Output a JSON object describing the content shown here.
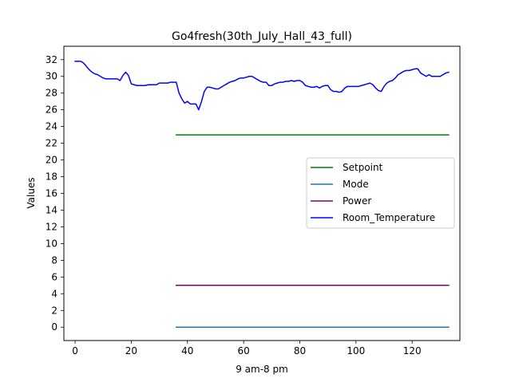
{
  "chart_data": {
    "type": "line",
    "title": "Go4fresh(30th_July_Hall_43_full)",
    "xlabel": "9 am-8 pm",
    "ylabel": "Values",
    "xlim": [
      -4,
      137
    ],
    "ylim": [
      -1.6,
      33.6
    ],
    "xticks": [
      0,
      20,
      40,
      60,
      80,
      100,
      120
    ],
    "yticks": [
      0,
      2,
      4,
      6,
      8,
      10,
      12,
      14,
      16,
      18,
      20,
      22,
      24,
      26,
      28,
      30,
      32
    ],
    "grid": false,
    "legend_position": "center-right",
    "series": [
      {
        "name": "Setpoint",
        "color": "#008000",
        "x": [
          36,
          133
        ],
        "y": [
          23,
          23
        ]
      },
      {
        "name": "Mode",
        "color": "#1f77b4",
        "x": [
          36,
          133
        ],
        "y": [
          0,
          0
        ]
      },
      {
        "name": "Power",
        "color": "#800080",
        "x": [
          36,
          133
        ],
        "y": [
          5,
          5
        ]
      },
      {
        "name": "Room_Temperature",
        "color": "#0000ff",
        "x": [
          0,
          1,
          2,
          3,
          4,
          5,
          6,
          7,
          8,
          9,
          10,
          11,
          12,
          13,
          14,
          15,
          16,
          17,
          18,
          19,
          20,
          21,
          22,
          23,
          24,
          25,
          26,
          27,
          28,
          29,
          30,
          31,
          32,
          33,
          34,
          35,
          36,
          37,
          38,
          39,
          40,
          41,
          42,
          43,
          44,
          45,
          46,
          47,
          48,
          49,
          50,
          51,
          52,
          53,
          54,
          55,
          56,
          57,
          58,
          59,
          60,
          61,
          62,
          63,
          64,
          65,
          66,
          67,
          68,
          69,
          70,
          71,
          72,
          73,
          74,
          75,
          76,
          77,
          78,
          79,
          80,
          81,
          82,
          83,
          84,
          85,
          86,
          87,
          88,
          89,
          90,
          91,
          92,
          93,
          94,
          95,
          96,
          97,
          98,
          99,
          100,
          101,
          102,
          103,
          104,
          105,
          106,
          107,
          108,
          109,
          110,
          111,
          112,
          113,
          114,
          115,
          116,
          117,
          118,
          119,
          120,
          121,
          122,
          123,
          124,
          125,
          126,
          127,
          128,
          129,
          130,
          131,
          132,
          133
        ],
        "y": [
          31.8,
          31.8,
          31.8,
          31.6,
          31.2,
          30.8,
          30.5,
          30.3,
          30.2,
          30.0,
          29.8,
          29.7,
          29.7,
          29.7,
          29.7,
          29.7,
          29.5,
          30.1,
          30.5,
          30.1,
          29.1,
          29.0,
          28.9,
          28.9,
          28.9,
          28.9,
          29.0,
          29.0,
          29.0,
          29.0,
          29.2,
          29.2,
          29.2,
          29.2,
          29.3,
          29.3,
          29.3,
          28.0,
          27.3,
          26.8,
          27.0,
          26.7,
          26.7,
          26.7,
          26.0,
          27.0,
          28.2,
          28.7,
          28.7,
          28.6,
          28.5,
          28.5,
          28.7,
          28.9,
          29.1,
          29.3,
          29.4,
          29.5,
          29.7,
          29.8,
          29.8,
          29.9,
          30.0,
          30.0,
          29.8,
          29.6,
          29.4,
          29.3,
          29.3,
          28.9,
          28.9,
          29.1,
          29.2,
          29.3,
          29.3,
          29.4,
          29.4,
          29.5,
          29.4,
          29.5,
          29.5,
          29.3,
          28.9,
          28.8,
          28.7,
          28.7,
          28.8,
          28.6,
          28.8,
          28.9,
          28.9,
          28.4,
          28.2,
          28.2,
          28.1,
          28.2,
          28.6,
          28.8,
          28.8,
          28.8,
          28.8,
          28.8,
          28.9,
          29.0,
          29.1,
          29.2,
          29.0,
          28.6,
          28.3,
          28.2,
          28.8,
          29.2,
          29.4,
          29.5,
          29.8,
          30.2,
          30.4,
          30.6,
          30.7,
          30.7,
          30.8,
          30.9,
          30.9,
          30.4,
          30.2,
          30.0,
          30.2,
          30.0,
          30.0,
          30.0,
          30.0,
          30.2,
          30.4,
          30.5
        ]
      }
    ]
  }
}
